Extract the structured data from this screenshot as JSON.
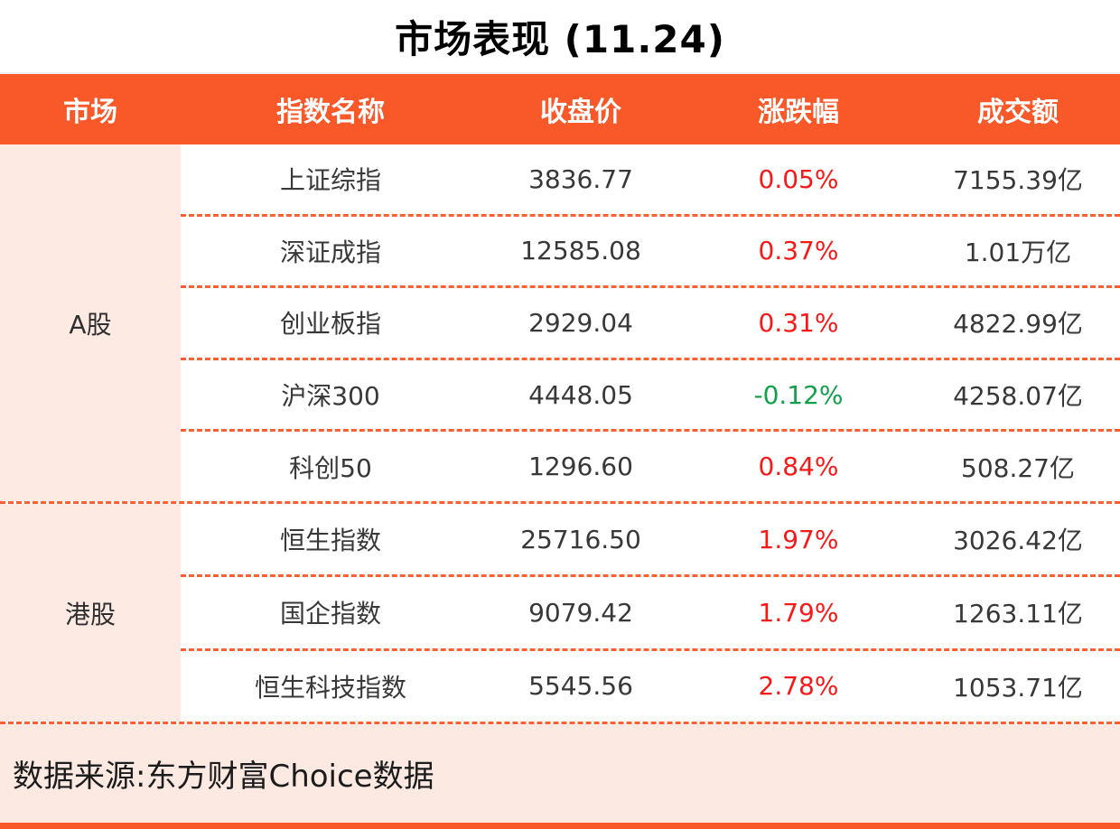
{
  "title": "市场表现 (11.24)",
  "colors": {
    "accent_orange": "#f95829",
    "dash_orange": "#fc5f33",
    "group_label_bg": "#fdeae3",
    "footer_bg": "#fce9e2",
    "up_red": "#f71818",
    "down_green": "#12a04a"
  },
  "table": {
    "headers": {
      "market": "市场",
      "index_name": "指数名称",
      "close": "收盘价",
      "change": "涨跌幅",
      "turnover": "成交额"
    },
    "groups": [
      {
        "market": "A股",
        "rows": [
          {
            "name": "上证综指",
            "close": "3836.77",
            "change": "0.05%",
            "direction": "up",
            "turnover": "7155.39亿"
          },
          {
            "name": "深证成指",
            "close": "12585.08",
            "change": "0.37%",
            "direction": "up",
            "turnover": "1.01万亿"
          },
          {
            "name": "创业板指",
            "close": "2929.04",
            "change": "0.31%",
            "direction": "up",
            "turnover": "4822.99亿"
          },
          {
            "name": "沪深300",
            "close": "4448.05",
            "change": "-0.12%",
            "direction": "down",
            "turnover": "4258.07亿"
          },
          {
            "name": "科创50",
            "close": "1296.60",
            "change": "0.84%",
            "direction": "up",
            "turnover": "508.27亿"
          }
        ]
      },
      {
        "market": "港股",
        "rows": [
          {
            "name": "恒生指数",
            "close": "25716.50",
            "change": "1.97%",
            "direction": "up",
            "turnover": "3026.42亿"
          },
          {
            "name": "国企指数",
            "close": "9079.42",
            "change": "1.79%",
            "direction": "up",
            "turnover": "1263.11亿"
          },
          {
            "name": "恒生科技指数",
            "close": "5545.56",
            "change": "2.78%",
            "direction": "up",
            "turnover": "1053.71亿"
          }
        ]
      }
    ]
  },
  "footer": {
    "source_text": "数据来源:东方财富Choice数据"
  },
  "chart_data": {
    "type": "table",
    "title": "市场表现 (11.24)",
    "columns": [
      "市场",
      "指数名称",
      "收盘价",
      "涨跌幅",
      "成交额"
    ],
    "rows": [
      [
        "A股",
        "上证综指",
        3836.77,
        "0.05%",
        "7155.39亿"
      ],
      [
        "A股",
        "深证成指",
        12585.08,
        "0.37%",
        "1.01万亿"
      ],
      [
        "A股",
        "创业板指",
        2929.04,
        "0.31%",
        "4822.99亿"
      ],
      [
        "A股",
        "沪深300",
        4448.05,
        "-0.12%",
        "4258.07亿"
      ],
      [
        "A股",
        "科创50",
        1296.6,
        "0.84%",
        "508.27亿"
      ],
      [
        "港股",
        "恒生指数",
        25716.5,
        "1.97%",
        "3026.42亿"
      ],
      [
        "港股",
        "国企指数",
        9079.42,
        "1.79%",
        "1263.11亿"
      ],
      [
        "港股",
        "恒生科技指数",
        5545.56,
        "2.78%",
        "1053.71亿"
      ]
    ],
    "notes": "涨跌幅 positive values red, negative values green; source note at bottom"
  }
}
